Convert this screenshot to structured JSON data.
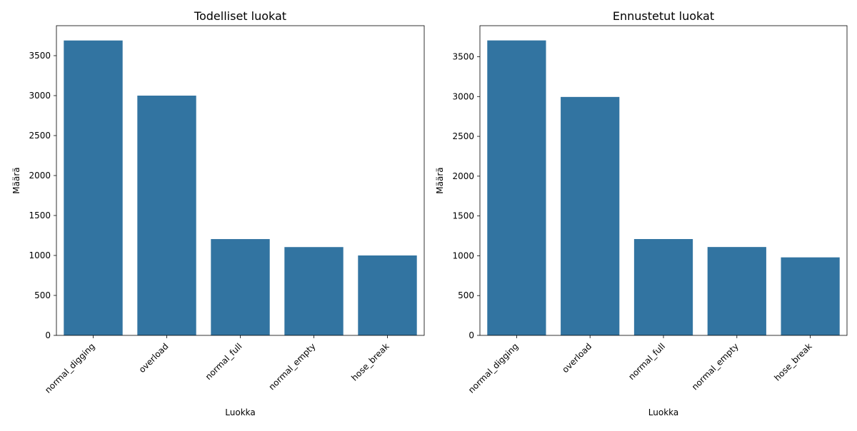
{
  "chart_data": [
    {
      "type": "bar",
      "title": "Todelliset luokat",
      "xlabel": "Luokka",
      "ylabel": "Määrä",
      "categories": [
        "normal_digging",
        "overload",
        "normal_full",
        "normal_empty",
        "hose_break"
      ],
      "values": [
        3690,
        3000,
        1205,
        1105,
        1000
      ],
      "ylim": [
        0,
        3875
      ],
      "yticks": [
        0,
        500,
        1000,
        1500,
        2000,
        2500,
        3000,
        3500
      ],
      "bar_color": "#3274a1"
    },
    {
      "type": "bar",
      "title": "Ennustetut luokat",
      "xlabel": "Luokka",
      "ylabel": "Määrä",
      "categories": [
        "normal_digging",
        "overload",
        "normal_full",
        "normal_empty",
        "hose_break"
      ],
      "values": [
        3705,
        2995,
        1210,
        1110,
        980
      ],
      "ylim": [
        0,
        3890
      ],
      "yticks": [
        0,
        500,
        1000,
        1500,
        2000,
        2500,
        3000,
        3500
      ],
      "bar_color": "#3274a1"
    }
  ]
}
